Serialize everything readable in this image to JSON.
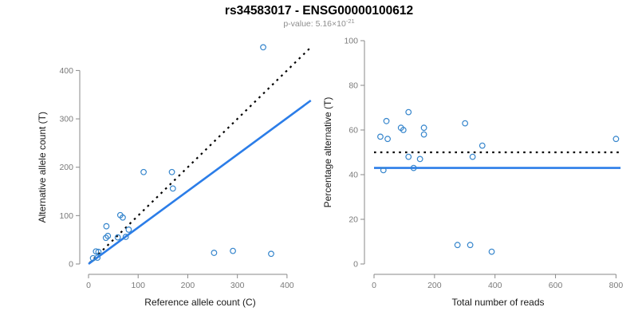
{
  "header": {
    "title": "rs34583017 - ENSG00000100612",
    "subtitle_prefix": "p-value: 5.16×10",
    "subtitle_exponent": "-21"
  },
  "colors": {
    "point": "#3585cc",
    "fit_line": "#2b7de8",
    "reference_line": "#000000",
    "axis": "#8a8a8a",
    "tick_label": "#7a7a7a",
    "axis_label": "#1a1a1a",
    "title": "#000000",
    "subtitle": "#8e8e8e"
  },
  "chart_data": [
    {
      "type": "scatter",
      "panel": "left",
      "xlabel": "Reference allele count (C)",
      "ylabel": "Alternative allele count (T)",
      "xlim": [
        0,
        450
      ],
      "ylim": [
        0,
        460
      ],
      "xticks": [
        0,
        100,
        200,
        300,
        400
      ],
      "yticks": [
        0,
        100,
        200,
        300,
        400
      ],
      "grid": false,
      "legend": null,
      "points": [
        [
          9,
          12
        ],
        [
          18,
          13
        ],
        [
          15,
          26
        ],
        [
          20,
          25
        ],
        [
          35,
          54
        ],
        [
          39,
          58
        ],
        [
          36,
          78
        ],
        [
          59,
          55
        ],
        [
          75,
          56
        ],
        [
          81,
          71
        ],
        [
          64,
          101
        ],
        [
          69,
          96
        ],
        [
          111,
          190
        ],
        [
          170,
          156
        ],
        [
          168,
          190
        ],
        [
          253,
          23
        ],
        [
          291,
          27
        ],
        [
          352,
          448
        ],
        [
          368,
          21
        ]
      ],
      "lines": [
        {
          "name": "expected-50pct-line",
          "style": "dotted",
          "color": "#000000",
          "from": [
            2,
            2
          ],
          "to": [
            448,
            448
          ]
        },
        {
          "name": "fitted-43pct-line",
          "style": "solid",
          "color": "#2b7de8",
          "from": [
            0,
            0
          ],
          "to": [
            448,
            338
          ]
        }
      ]
    },
    {
      "type": "scatter",
      "panel": "right",
      "xlabel": "Total number of reads",
      "ylabel": "Percentage alternative (T)",
      "xlim": [
        0,
        820
      ],
      "ylim": [
        0,
        100
      ],
      "xticks": [
        0,
        200,
        400,
        600,
        800
      ],
      "yticks": [
        0,
        20,
        40,
        60,
        80,
        100
      ],
      "grid": false,
      "legend": null,
      "points": [
        [
          21,
          57
        ],
        [
          31,
          42
        ],
        [
          41,
          64
        ],
        [
          45,
          56
        ],
        [
          89,
          61
        ],
        [
          97,
          60
        ],
        [
          114,
          68
        ],
        [
          114,
          48
        ],
        [
          131,
          43
        ],
        [
          152,
          47
        ],
        [
          165,
          61
        ],
        [
          165,
          58
        ],
        [
          276,
          8.5
        ],
        [
          301,
          63
        ],
        [
          318,
          8.5
        ],
        [
          326,
          48
        ],
        [
          358,
          53
        ],
        [
          389,
          5.5
        ],
        [
          800,
          56
        ]
      ],
      "lines": [
        {
          "name": "expected-50pct-line",
          "style": "dotted",
          "color": "#000000",
          "from": [
            0,
            50
          ],
          "to": [
            815,
            50
          ]
        },
        {
          "name": "fitted-43pct-line",
          "style": "solid",
          "color": "#2b7de8",
          "from": [
            0,
            43
          ],
          "to": [
            815,
            43
          ]
        }
      ]
    }
  ]
}
